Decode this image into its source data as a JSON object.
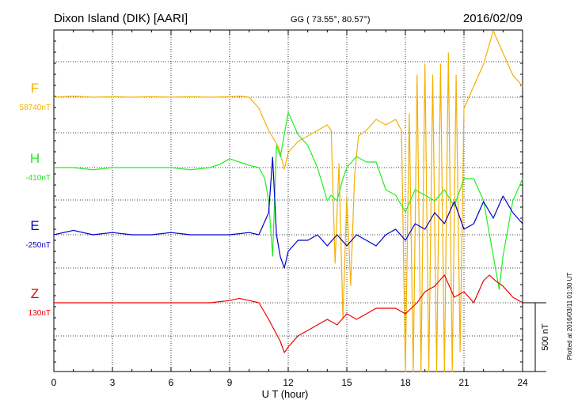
{
  "header": {
    "station": "Dixon Island (DIK)  [AARI]",
    "coords": "GG ( 73.55°,  80.57°)",
    "date": "2016/02/09"
  },
  "footer": {
    "plotted": "Plotted at 2016/03/11 01:30 UT"
  },
  "chart_data": {
    "type": "line",
    "xlabel": "U T (hour)",
    "xlim": [
      0,
      24
    ],
    "xticks": [
      0,
      3,
      6,
      9,
      12,
      15,
      18,
      21,
      24
    ],
    "grid": true,
    "scale_bar": {
      "label": "500 nT",
      "value_nT": 500
    },
    "series": [
      {
        "name": "F",
        "baseline_label": "58740nT",
        "color": "#f5b000",
        "x": [
          0,
          1,
          2,
          3,
          4,
          5,
          6,
          7,
          8,
          9,
          9.5,
          10,
          10.5,
          11,
          11.5,
          11.8,
          12,
          12.5,
          13,
          13.5,
          14,
          14.2,
          14.4,
          14.6,
          14.8,
          15,
          15.2,
          15.4,
          15.6,
          16,
          16.5,
          17,
          17.5,
          17.8,
          18,
          18.2,
          18.4,
          18.6,
          18.8,
          19,
          19.2,
          19.4,
          19.6,
          19.8,
          20,
          20.2,
          20.4,
          20.6,
          20.8,
          21,
          21.5,
          22,
          22.5,
          23,
          23.5,
          24
        ],
        "y": [
          0,
          10,
          0,
          5,
          0,
          5,
          0,
          5,
          0,
          5,
          10,
          0,
          -100,
          -300,
          -450,
          -650,
          -500,
          -400,
          -350,
          -300,
          -250,
          -300,
          -1500,
          -600,
          -2000,
          -900,
          -1700,
          -700,
          -350,
          -300,
          -200,
          -250,
          -200,
          -300,
          -2800,
          -150,
          -2600,
          200,
          -2700,
          300,
          -2900,
          200,
          -2500,
          300,
          -2800,
          400,
          -2800,
          200,
          -2300,
          -100,
          100,
          300,
          600,
          400,
          200,
          100
        ]
      },
      {
        "name": "H",
        "baseline_label": "-410nT",
        "color": "#22ee22",
        "x": [
          0,
          1,
          2,
          3,
          4,
          5,
          6,
          7,
          8,
          8.5,
          9,
          9.5,
          10,
          10.5,
          10.8,
          11,
          11.2,
          11.4,
          11.6,
          11.8,
          12,
          12.5,
          13,
          13.5,
          14,
          14.2,
          14.5,
          14.8,
          15,
          15.5,
          16,
          16.5,
          17,
          17.5,
          18,
          18.5,
          19,
          19.5,
          20,
          20.5,
          21,
          21.5,
          22,
          22.3,
          22.6,
          22.8,
          23,
          23.5,
          24
        ],
        "y": [
          0,
          0,
          -20,
          0,
          0,
          0,
          0,
          -20,
          0,
          30,
          80,
          50,
          20,
          0,
          -100,
          -300,
          -800,
          200,
          100,
          300,
          500,
          300,
          200,
          0,
          -300,
          -250,
          -300,
          -100,
          0,
          100,
          50,
          50,
          -200,
          -250,
          -400,
          -200,
          -250,
          -300,
          -200,
          -350,
          -100,
          -100,
          -300,
          -600,
          -900,
          -1100,
          -800,
          -300,
          -100
        ]
      },
      {
        "name": "E",
        "baseline_label": "-250nT",
        "color": "#0000cc",
        "x": [
          0,
          1,
          2,
          3,
          4,
          5,
          6,
          7,
          8,
          9,
          10,
          10.5,
          11,
          11.2,
          11.4,
          11.6,
          11.8,
          12,
          12.5,
          13,
          13.5,
          14,
          14.5,
          15,
          15.5,
          16,
          16.5,
          17,
          17.5,
          18,
          18.5,
          19,
          19.5,
          20,
          20.5,
          21,
          21.5,
          22,
          22.5,
          23,
          23.5,
          24
        ],
        "y": [
          0,
          40,
          0,
          20,
          0,
          0,
          20,
          0,
          0,
          0,
          20,
          0,
          200,
          700,
          0,
          -200,
          -300,
          -150,
          -50,
          -50,
          0,
          -100,
          0,
          -100,
          0,
          -50,
          -100,
          0,
          50,
          -50,
          100,
          50,
          200,
          100,
          300,
          50,
          100,
          300,
          150,
          350,
          200,
          100
        ]
      },
      {
        "name": "Z",
        "baseline_label": "130nT",
        "color": "#ee0000",
        "x": [
          0,
          1,
          2,
          3,
          4,
          5,
          6,
          7,
          8,
          9,
          9.5,
          10,
          10.5,
          11,
          11.3,
          11.6,
          11.8,
          12,
          12.5,
          13,
          13.5,
          14,
          14.5,
          15,
          15.5,
          16,
          16.5,
          17,
          17.5,
          18,
          18.3,
          18.6,
          19,
          19.5,
          20,
          20.5,
          21,
          21.5,
          22,
          22.3,
          22.6,
          23,
          23.5,
          24
        ],
        "y": [
          0,
          0,
          0,
          0,
          0,
          0,
          0,
          0,
          0,
          20,
          40,
          20,
          0,
          -150,
          -250,
          -350,
          -450,
          -400,
          -300,
          -250,
          -200,
          -150,
          -200,
          -100,
          -150,
          -100,
          -50,
          -50,
          -50,
          -100,
          -50,
          0,
          100,
          150,
          250,
          50,
          100,
          0,
          200,
          250,
          200,
          150,
          50,
          0
        ]
      }
    ]
  }
}
